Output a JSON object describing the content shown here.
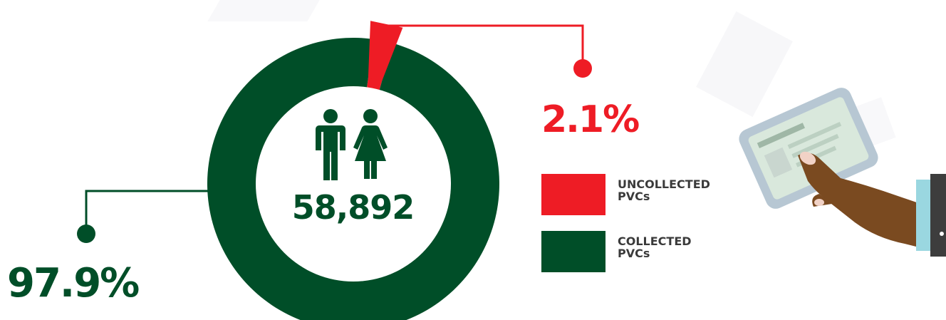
{
  "colors": {
    "collected": "#004e28",
    "uncollected": "#ee1c25",
    "label_text": "#3a3a3a"
  },
  "icons": {
    "people": "male-female-people-icon",
    "illustration": "hand-holding-voter-card"
  },
  "chart_data": {
    "type": "pie",
    "style": "donut",
    "title": "",
    "total_label": "58,892",
    "slices": [
      {
        "label": "UNCOLLECTED\nPVCs",
        "value": 2.1,
        "value_label": "2.1%",
        "color": "#ee1c25"
      },
      {
        "label": "COLLECTED\nPVCs",
        "value": 97.9,
        "value_label": "97.9%",
        "color": "#004e28"
      }
    ],
    "legend": [
      {
        "label": "UNCOLLECTED\nPVCs",
        "color": "#ee1c25"
      },
      {
        "label": "COLLECTED\nPVCs",
        "color": "#004e28"
      }
    ],
    "legend_position": "right"
  }
}
